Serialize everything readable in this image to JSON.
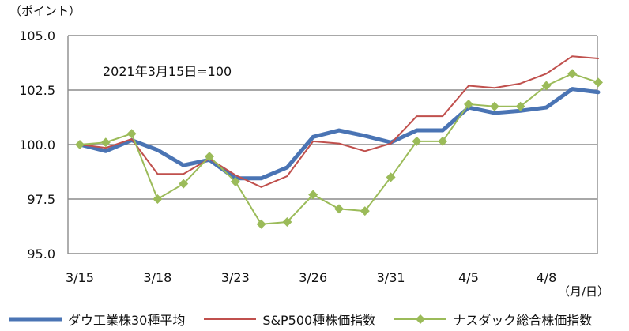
{
  "chart_data": {
    "type": "line",
    "y_unit_label": "（ポイント）",
    "x_unit_label": "（月/日）",
    "annotation": "2021年3月15日=100",
    "ylim": [
      95.0,
      105.0
    ],
    "y_ticks": [
      "95.0",
      "97.5",
      "100.0",
      "102.5",
      "105.0"
    ],
    "y_tick_values": [
      95.0,
      97.5,
      100.0,
      102.5,
      105.0
    ],
    "grid": true,
    "legend_position": "bottom",
    "x_tick_labels": [
      {
        "index": 0,
        "label": "3/15"
      },
      {
        "index": 3,
        "label": "3/18"
      },
      {
        "index": 6,
        "label": "3/23"
      },
      {
        "index": 9,
        "label": "3/26"
      },
      {
        "index": 12,
        "label": "3/31"
      },
      {
        "index": 15,
        "label": "4/5"
      },
      {
        "index": 18,
        "label": "4/8"
      }
    ],
    "n_points": 21,
    "series": [
      {
        "name": "ダウ工業株30種平均",
        "color": "#4a74b4",
        "values": [
          100.0,
          99.7,
          100.2,
          99.75,
          99.05,
          99.3,
          98.45,
          98.45,
          98.95,
          100.35,
          100.65,
          100.4,
          100.1,
          100.65,
          100.65,
          101.7,
          101.45,
          101.55,
          101.7,
          102.55,
          102.4
        ]
      },
      {
        "name": "S&P500種株価指数",
        "color": "#c0504d",
        "values": [
          100.0,
          99.85,
          100.25,
          98.65,
          98.65,
          99.35,
          98.6,
          98.05,
          98.55,
          100.15,
          100.05,
          99.7,
          100.05,
          101.3,
          101.3,
          102.7,
          102.6,
          102.8,
          103.25,
          104.05,
          103.95
        ]
      },
      {
        "name": "ナスダック総合株価指数",
        "color": "#9bbb59",
        "marker": "diamond",
        "values": [
          100.0,
          100.1,
          100.5,
          97.5,
          98.2,
          99.45,
          98.3,
          96.35,
          96.45,
          97.7,
          97.05,
          96.95,
          98.5,
          100.15,
          100.15,
          101.85,
          101.75,
          101.75,
          102.7,
          103.25,
          102.85
        ]
      }
    ]
  }
}
